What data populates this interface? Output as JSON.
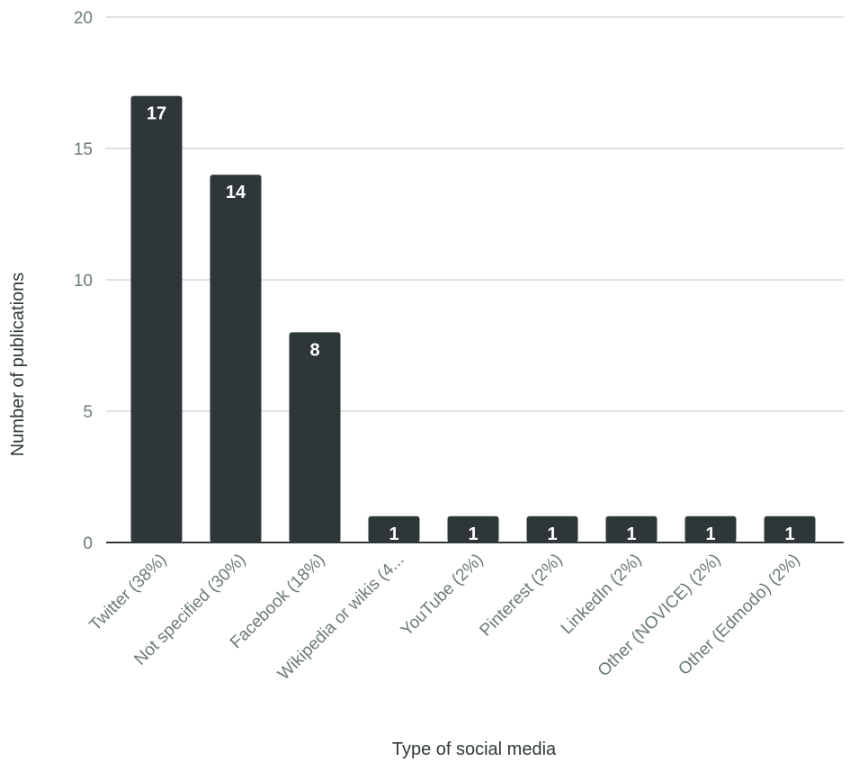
{
  "chart_data": {
    "type": "bar",
    "title": "",
    "xlabel": "Type of social media",
    "ylabel": "Number of publications",
    "categories": [
      "Twitter (38%)",
      "Not specified (30%)",
      "Facebook (18%)",
      "Wikipedia or wikis (4...",
      "YouTube (2%)",
      "Pinterest (2%)",
      "LinkedIn (2%)",
      "Other (NOVICE) (2%)",
      "Other (Edmodo) (2%)"
    ],
    "values": [
      17,
      14,
      8,
      1,
      1,
      1,
      1,
      1,
      1
    ],
    "data_labels": [
      "17",
      "14",
      "8",
      "1",
      "1",
      "1",
      "1",
      "1",
      "1"
    ],
    "ylim": [
      0,
      20
    ],
    "yticks": [
      0,
      5,
      10,
      15,
      20
    ],
    "ytick_labels": [
      "0",
      "5",
      "10",
      "15",
      "20"
    ],
    "grid": true,
    "legend": "none",
    "colors": {
      "bar": "#2f3638",
      "grid": "#c9d1cf",
      "tick_text": "#6b7b78",
      "axis_title": "#2f3a38",
      "data_label": "#ffffff"
    }
  }
}
